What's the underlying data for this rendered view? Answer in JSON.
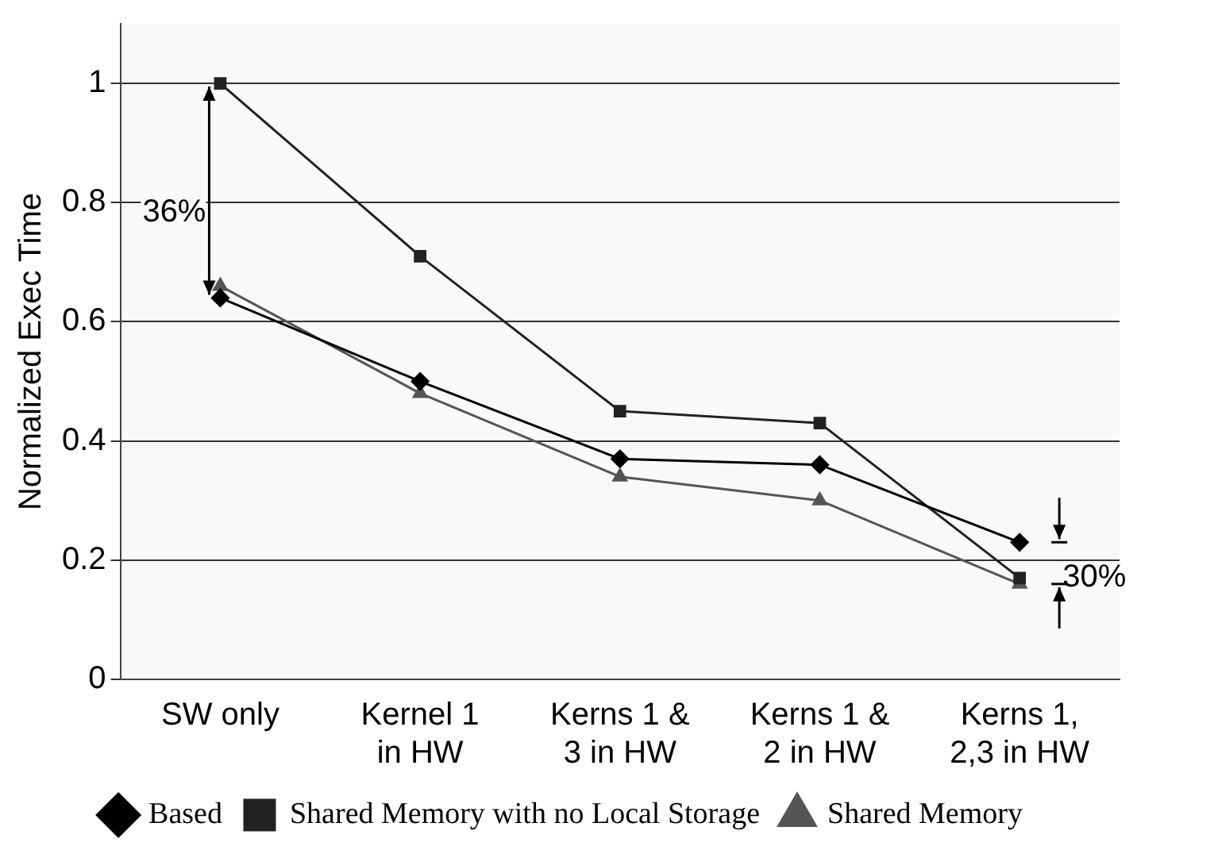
{
  "chart_data": {
    "type": "line",
    "ylabel": "Normalized Exec Time",
    "categories": [
      "SW only",
      "Kernel 1 in HW",
      "Kerns 1 & 3 in HW",
      "Kerns 1 & 2 in HW",
      "Kerns 1, 2,3 in HW"
    ],
    "series": [
      {
        "name": "Based",
        "color": "#000000",
        "marker": "diamond",
        "values": [
          0.64,
          0.5,
          0.37,
          0.36,
          0.23
        ]
      },
      {
        "name": "Shared Memory with no Local Storage",
        "color": "#222222",
        "marker": "square",
        "values": [
          1.0,
          0.71,
          0.45,
          0.43,
          0.17
        ]
      },
      {
        "name": "Shared Memory",
        "color": "#555555",
        "marker": "triangle",
        "values": [
          0.66,
          0.48,
          0.34,
          0.3,
          0.16
        ]
      }
    ],
    "ylim": [
      0,
      1.1
    ],
    "yticks": [
      0,
      0.2,
      0.4,
      0.6,
      0.8,
      1
    ],
    "grid": "y",
    "legend": "bottom",
    "annotations": [
      "36%",
      {
        "text": "30%",
        "x": "Kerns 1, 2,3 in HW",
        "y": 0.17
      }
    ]
  }
}
